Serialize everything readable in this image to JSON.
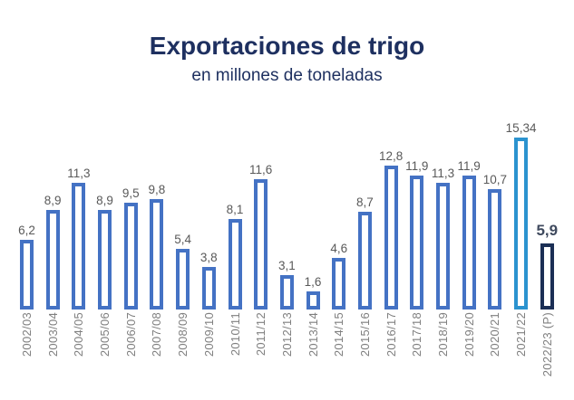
{
  "chart": {
    "title": "Exportaciones de trigo",
    "subtitle": "en millones de toneladas"
  },
  "chart_data": {
    "type": "bar",
    "title": "Exportaciones de trigo",
    "subtitle": "en millones de toneladas",
    "unit": "millones de toneladas",
    "categories": [
      "2002/03",
      "2003/04",
      "2004/05",
      "2005/06",
      "2006/07",
      "2007/08",
      "2008/09",
      "2009/10",
      "2010/11",
      "2011/12",
      "2012/13",
      "2013/14",
      "2014/15",
      "2015/16",
      "2016/17",
      "2017/18",
      "2018/19",
      "2019/20",
      "2020/21",
      "2021/22",
      "2022/23 (P)"
    ],
    "values": [
      6.2,
      8.9,
      11.3,
      8.9,
      9.5,
      9.8,
      5.4,
      3.8,
      8.1,
      11.6,
      3.1,
      1.6,
      4.6,
      8.7,
      12.8,
      11.9,
      11.3,
      11.9,
      10.7,
      15.34,
      5.9
    ],
    "value_labels": [
      "6,2",
      "8,9",
      "11,3",
      "8,9",
      "9,5",
      "9,8",
      "5,4",
      "3,8",
      "8,1",
      "11,6",
      "3,1",
      "1,6",
      "4,6",
      "8,7",
      "12,8",
      "11,9",
      "11,3",
      "11,9",
      "10,7",
      "15,34",
      "5,9"
    ],
    "highlighted_category": "2021/22",
    "final_category": "2022/23 (P)",
    "ylim": [
      0,
      16
    ],
    "grid": false,
    "legend": false,
    "axis_lines": false,
    "bar_fill": "#ffffff",
    "colors": {
      "bar_normal": "#4472c4",
      "bar_highlight": "#2b93cf",
      "bar_final": "#1b2f55",
      "title": "#1e3060",
      "value_label": "#595959",
      "final_value_label": "#3f4a5e",
      "axis_label": "#7f7f7f"
    }
  }
}
